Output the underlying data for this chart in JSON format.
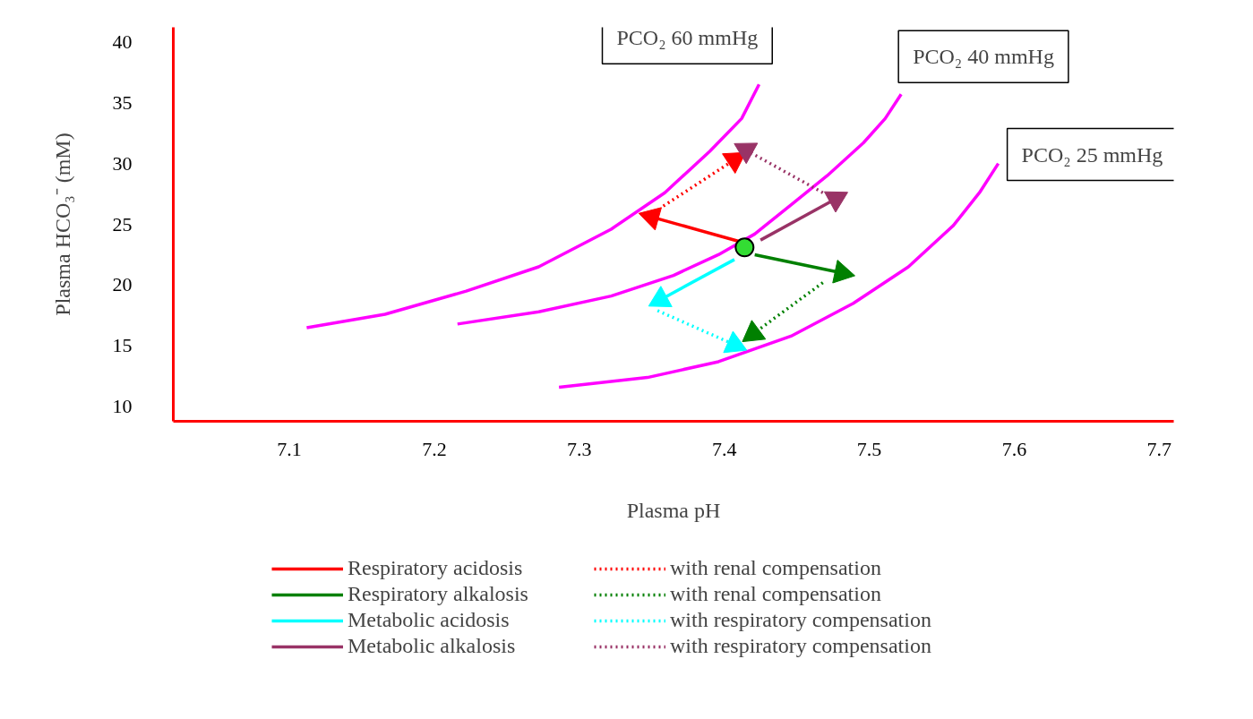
{
  "chart_data": {
    "type": "line",
    "xlabel": "Plasma pH",
    "ylabel": "Plasma HCO₃⁻ (mM)",
    "xlim": [
      7.02,
      7.71
    ],
    "ylim": [
      8.8,
      41.2
    ],
    "xticks": [
      7.1,
      7.2,
      7.3,
      7.4,
      7.5,
      7.6,
      7.7
    ],
    "yticks": [
      10,
      15,
      20,
      25,
      30,
      35,
      40
    ],
    "grid": false,
    "legend": "bottom",
    "marker": "none",
    "series": [
      {
        "name": "PCO₂ 60 mmHg",
        "color": "#ff00ff",
        "line_style": "solid",
        "x": [
          7.112,
          7.166,
          7.222,
          7.272,
          7.322,
          7.359,
          7.39,
          7.412,
          7.424
        ],
        "values": [
          16.5,
          17.6,
          19.5,
          21.5,
          24.6,
          27.6,
          31.0,
          33.7,
          36.5
        ]
      },
      {
        "name": "PCO₂ 40 mmHg",
        "color": "#ff00ff",
        "line_style": "solid",
        "x": [
          7.216,
          7.272,
          7.322,
          7.365,
          7.396,
          7.421,
          7.446,
          7.471,
          7.496,
          7.511,
          7.522
        ],
        "values": [
          16.8,
          17.8,
          19.1,
          20.8,
          22.5,
          24.2,
          26.6,
          29.0,
          31.7,
          33.7,
          35.7
        ]
      },
      {
        "name": "PCO₂ 25 mmHg",
        "color": "#ff00ff",
        "line_style": "solid",
        "x": [
          7.286,
          7.347,
          7.396,
          7.446,
          7.489,
          7.527,
          7.558,
          7.576,
          7.589
        ],
        "values": [
          11.6,
          12.4,
          13.7,
          15.8,
          18.5,
          21.5,
          24.9,
          27.6,
          30.0
        ]
      },
      {
        "name": "Respiratory acidosis",
        "color": "#ff0000",
        "line_style": "solid",
        "marker": "triangle",
        "x": [
          7.41,
          7.35
        ],
        "values": [
          23.6,
          25.6
        ]
      },
      {
        "name": "with renal compensation",
        "color": "#ff0000",
        "line_style": "dotted",
        "marker": "triangle",
        "x": [
          7.358,
          7.407
        ],
        "values": [
          26.5,
          30.3
        ]
      },
      {
        "name": "Respiratory alkalosis",
        "color": "#008000",
        "line_style": "solid",
        "marker": "triangle",
        "x": [
          7.421,
          7.481
        ],
        "values": [
          22.5,
          21.0
        ]
      },
      {
        "name": "with renal compensation",
        "color": "#008000",
        "line_style": "dotted",
        "marker": "triangle",
        "x": [
          7.468,
          7.42
        ],
        "values": [
          20.2,
          16.0
        ]
      },
      {
        "name": "Metabolic acidosis",
        "color": "#00ffff",
        "line_style": "solid",
        "marker": "triangle",
        "x": [
          7.407,
          7.356
        ],
        "values": [
          22.1,
          18.8
        ]
      },
      {
        "name": "with respiratory compensation",
        "color": "#00ffff",
        "line_style": "dotted",
        "marker": "triangle",
        "x": [
          7.354,
          7.407
        ],
        "values": [
          17.9,
          15.1
        ]
      },
      {
        "name": "Metabolic alkalosis",
        "color": "#993366",
        "line_style": "solid",
        "marker": "triangle",
        "x": [
          7.425,
          7.477
        ],
        "values": [
          23.7,
          27.1
        ]
      },
      {
        "name": "with respiratory compensation",
        "color": "#993366",
        "line_style": "dotted",
        "marker": "triangle",
        "x": [
          7.468,
          7.415
        ],
        "values": [
          27.6,
          31.1
        ]
      },
      {
        "type": "scatter",
        "marker": "circle",
        "color": "#33dd33",
        "x": [
          7.414
        ],
        "values": [
          23.1
        ]
      }
    ]
  }
}
